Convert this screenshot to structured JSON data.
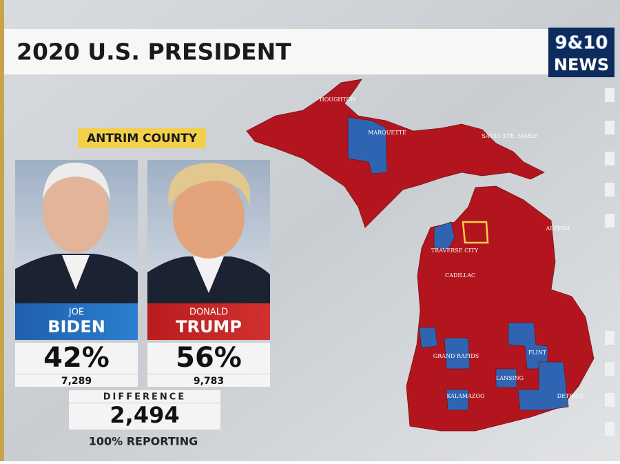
{
  "header": {
    "title": "2020 U.S. PRESIDENT",
    "logo_top": "9&10",
    "logo_bottom": "NEWS"
  },
  "county": "ANTRIM COUNTY",
  "candidates": [
    {
      "first": "JOE",
      "last": "BIDEN",
      "percent": "42%",
      "votes": "7,289"
    },
    {
      "first": "DONALD",
      "last": "TRUMP",
      "percent": "56%",
      "votes": "9,783"
    }
  ],
  "difference": {
    "label": "DIFFERENCE",
    "value": "2,494"
  },
  "reporting": "100% REPORTING",
  "map_labels": [
    "HOUGHTON",
    "MARQUETTE",
    "SAULT STE. MARIE",
    "ALPENA",
    "TRAVERSE CITY",
    "CADILLAC",
    "GRAND RAPIDS",
    "FLINT",
    "LANSING",
    "KALAMAZOO",
    "DETROIT"
  ]
}
